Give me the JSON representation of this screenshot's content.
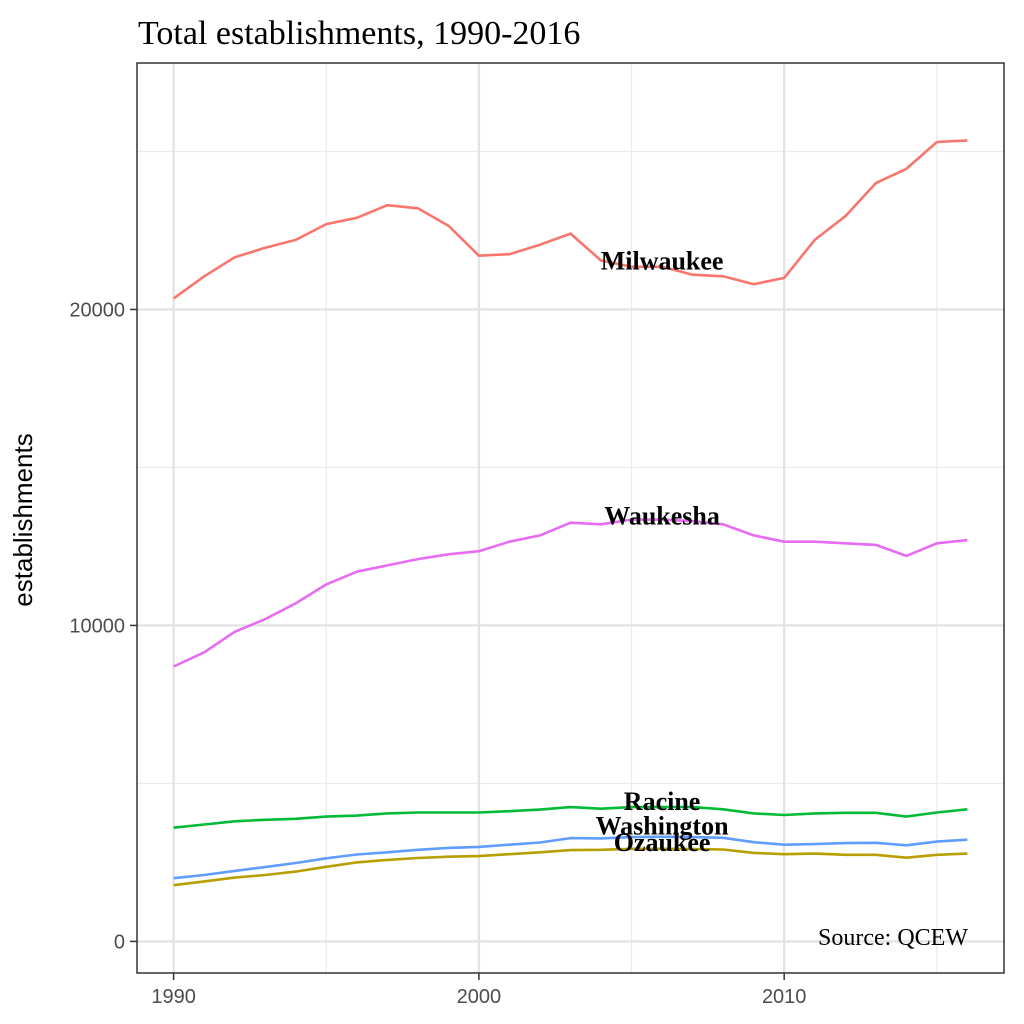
{
  "chart_data": {
    "type": "line",
    "title": "Total establishments, 1990-2016",
    "xlabel": "",
    "ylabel": "establishments",
    "xlim": [
      1988.8,
      2017.2
    ],
    "ylim": [
      -1000,
      27800
    ],
    "x_ticks": [
      1990,
      2000,
      2010
    ],
    "y_ticks": [
      0,
      10000,
      20000
    ],
    "grid": true,
    "legend": "none",
    "annotation": "Source: QCEW",
    "x": [
      1990,
      1991,
      1992,
      1993,
      1994,
      1995,
      1996,
      1997,
      1998,
      1999,
      2000,
      2001,
      2002,
      2003,
      2004,
      2005,
      2006,
      2007,
      2008,
      2009,
      2010,
      2011,
      2012,
      2013,
      2014,
      2015,
      2016
    ],
    "series": [
      {
        "name": "Milwaukee",
        "color": "#F8766D",
        "label_x": 2006.0,
        "label_y": 21450,
        "values": [
          20350,
          21050,
          21650,
          21950,
          22200,
          22700,
          22900,
          23300,
          23200,
          22650,
          21700,
          21750,
          22050,
          22400,
          21550,
          21350,
          21350,
          21100,
          21050,
          20800,
          21000,
          22200,
          22950,
          24000,
          24450,
          25300,
          25350
        ]
      },
      {
        "name": "Waukesha",
        "color": "#E76BF3",
        "label_x": 2006.0,
        "label_y": 13380,
        "values": [
          8700,
          9150,
          9800,
          10200,
          10700,
          11300,
          11700,
          11900,
          12100,
          12250,
          12350,
          12650,
          12850,
          13250,
          13200,
          13350,
          13350,
          13300,
          13200,
          12850,
          12650,
          12650,
          12600,
          12550,
          12200,
          12600,
          12700
        ]
      },
      {
        "name": "Racine",
        "color": "#00BA38",
        "label_x": 2006.0,
        "label_y": 4350,
        "values": [
          3600,
          3700,
          3800,
          3850,
          3880,
          3950,
          3980,
          4050,
          4080,
          4080,
          4080,
          4120,
          4170,
          4250,
          4200,
          4250,
          4250,
          4250,
          4180,
          4050,
          4000,
          4050,
          4070,
          4070,
          3950,
          4080,
          4180
        ]
      },
      {
        "name": "Washington",
        "color": "#619CFF",
        "label_x": 2006.0,
        "label_y": 3580,
        "values": [
          2000,
          2100,
          2230,
          2350,
          2480,
          2630,
          2750,
          2820,
          2900,
          2960,
          2990,
          3060,
          3130,
          3270,
          3260,
          3300,
          3310,
          3300,
          3280,
          3140,
          3060,
          3080,
          3110,
          3120,
          3040,
          3160,
          3220
        ]
      },
      {
        "name": "Ozaukee",
        "color": "#B79F00",
        "label_x": 2006.0,
        "label_y": 3050,
        "values": [
          1780,
          1900,
          2020,
          2100,
          2210,
          2360,
          2500,
          2580,
          2640,
          2680,
          2700,
          2760,
          2820,
          2890,
          2900,
          2930,
          2930,
          2920,
          2910,
          2800,
          2760,
          2780,
          2740,
          2740,
          2650,
          2740,
          2780
        ]
      }
    ]
  }
}
